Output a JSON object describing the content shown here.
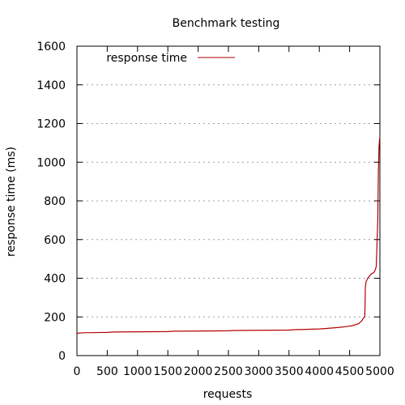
{
  "chart_data": {
    "type": "line",
    "title": "Benchmark testing",
    "xlabel": "requests",
    "ylabel": "response time (ms)",
    "xlim": [
      0,
      5000
    ],
    "ylim": [
      0,
      1600
    ],
    "xticks": [
      0,
      500,
      1000,
      1500,
      2000,
      2500,
      3000,
      3500,
      4000,
      4500,
      5000
    ],
    "yticks": [
      0,
      200,
      400,
      600,
      800,
      1000,
      1200,
      1400,
      1600
    ],
    "grid": "horizontal",
    "legend_position": "top-left",
    "series": [
      {
        "name": "response time",
        "color": "#b30000",
        "x": [
          0,
          100,
          500,
          600,
          1500,
          1600,
          2500,
          2600,
          3500,
          3600,
          4000,
          4100,
          4300,
          4450,
          4550,
          4650,
          4700,
          4730,
          4750,
          4755,
          4760,
          4770,
          4800,
          4850,
          4900,
          4920,
          4940,
          4955,
          4965,
          4975,
          4985,
          4995,
          5000
        ],
        "y": [
          115,
          118,
          120,
          122,
          124,
          126,
          128,
          130,
          132,
          134,
          138,
          140,
          145,
          150,
          155,
          165,
          180,
          195,
          200,
          260,
          350,
          380,
          400,
          420,
          430,
          440,
          460,
          600,
          700,
          950,
          1080,
          1120,
          1130
        ]
      }
    ]
  }
}
